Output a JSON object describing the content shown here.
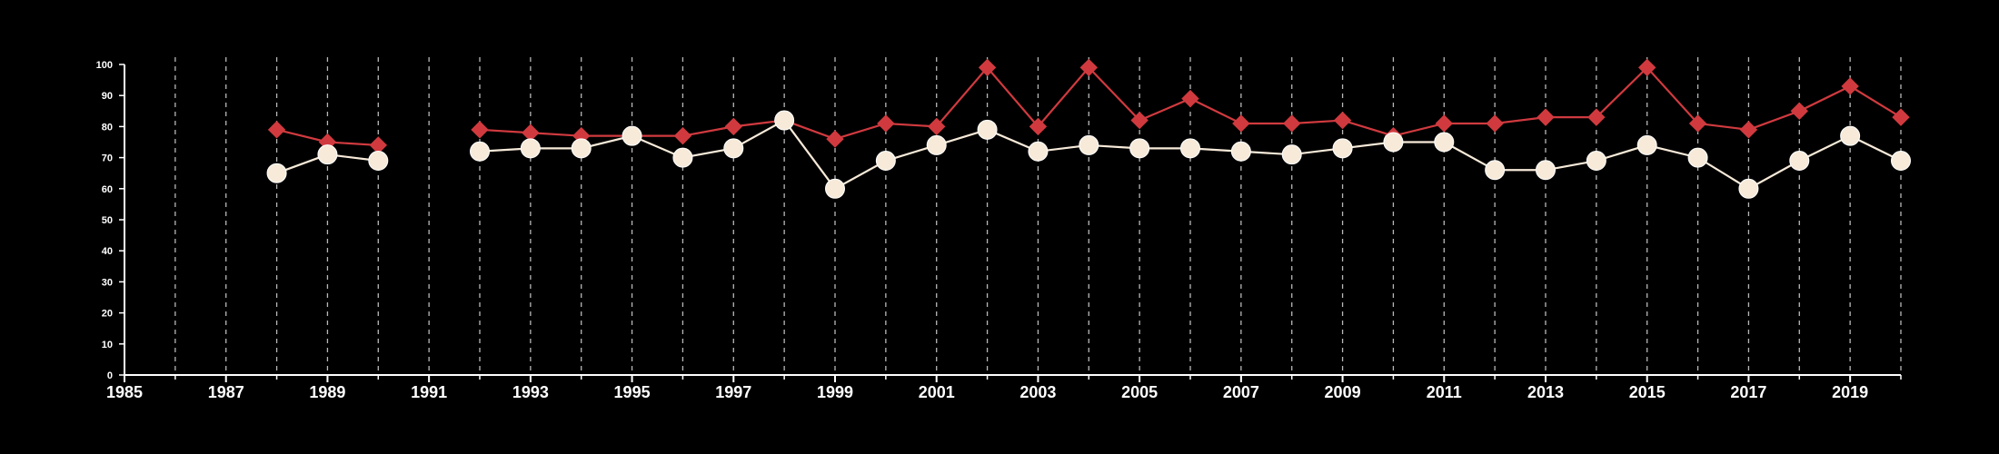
{
  "chart_data": {
    "type": "line",
    "title": "",
    "xlabel": "",
    "ylabel": "",
    "xlim": [
      1985,
      2020
    ],
    "ylim": [
      0,
      100
    ],
    "x_ticks": [
      "1985",
      "1987",
      "1989",
      "1991",
      "1993",
      "1995",
      "1997",
      "1999",
      "2001",
      "2003",
      "2005",
      "2007",
      "2009",
      "2011",
      "2013",
      "2015",
      "2017",
      "2019"
    ],
    "y_ticks": [
      "0",
      "10",
      "20",
      "30",
      "40",
      "50",
      "60",
      "70",
      "80",
      "90",
      "100"
    ],
    "vertical_dashed_grid": true,
    "background": "#000000",
    "axis_color": "#ffffff",
    "series": [
      {
        "marker": "diamond",
        "color": "#d03a3f",
        "x": [
          1988,
          1989,
          1990,
          1992,
          1993,
          1994,
          1995,
          1996,
          1997,
          1998,
          1999,
          2000,
          2001,
          2002,
          2003,
          2004,
          2005,
          2006,
          2007,
          2008,
          2009,
          2010,
          2011,
          2012,
          2013,
          2014,
          2015,
          2016,
          2017,
          2018,
          2019,
          2020
        ],
        "values": [
          79,
          75,
          74,
          79,
          78,
          77,
          77,
          77,
          80,
          82,
          76,
          81,
          80,
          99,
          80,
          99,
          82,
          89,
          81,
          81,
          82,
          77,
          81,
          81,
          83,
          83,
          99,
          81,
          79,
          85,
          93,
          83
        ]
      },
      {
        "marker": "circle",
        "color": "#f7ead9",
        "x": [
          1988,
          1989,
          1990,
          1992,
          1993,
          1994,
          1995,
          1996,
          1997,
          1998,
          1999,
          2000,
          2001,
          2002,
          2003,
          2004,
          2005,
          2006,
          2007,
          2008,
          2009,
          2010,
          2011,
          2012,
          2013,
          2014,
          2015,
          2016,
          2017,
          2018,
          2019,
          2020
        ],
        "values": [
          65,
          71,
          69,
          72,
          73,
          73,
          77,
          70,
          73,
          82,
          60,
          69,
          74,
          79,
          72,
          74,
          73,
          73,
          72,
          71,
          73,
          75,
          75,
          66,
          66,
          69,
          74,
          70,
          60,
          69,
          77,
          69
        ]
      }
    ]
  }
}
